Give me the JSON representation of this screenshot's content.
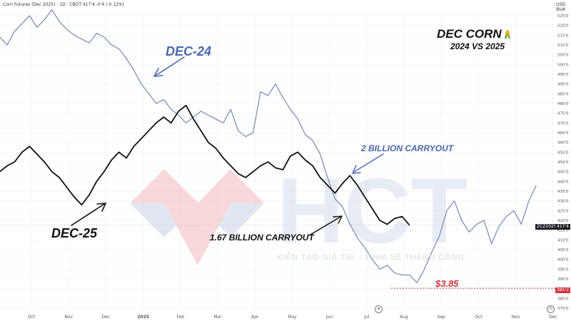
{
  "header": {
    "symbol_line": "Corn Futures (Dec 2025) · 1D · CBOT  417'4  -0'4 (-0.12%)",
    "currency": [
      "USD",
      "BUA"
    ]
  },
  "title": "DEC CORN",
  "subtitle": "2024 VS 2025",
  "watermark": {
    "logo_text": "HCT",
    "slogan": "KIẾN TẠO GIÁ TRỊ – CHIA SẺ THÀNH CÔNG"
  },
  "annotations": {
    "dec24": "DEC-24",
    "dec25": "DEC-25",
    "carry_2b": "2 BILLION CARRYOUT",
    "carry_167": "1.67 BILLION CARRYOUT",
    "price_385": "$3.85"
  },
  "tags": {
    "series_label": "ZCZ2025",
    "last_price": "417'4",
    "level_385": "385'2"
  },
  "colors": {
    "dec24": "#7c90b8",
    "dec25": "#111111",
    "annotation_blue": "#4a68ad",
    "price_red": "#d0363f",
    "grid": "#ececec"
  },
  "chart_data": {
    "type": "line",
    "title": "DEC CORN",
    "subtitle": "2024 VS 2025",
    "x_ticks": [
      "Oct",
      "Nov",
      "Dec",
      "2025",
      "Feb",
      "Mar",
      "Apr",
      "May",
      "Jun",
      "Jul",
      "Aug",
      "Sep",
      "Oct",
      "Nov",
      "Dec"
    ],
    "y_ticks": [
      "375'0",
      "380'0",
      "385'0",
      "390'0",
      "395'0",
      "400'0",
      "405'0",
      "410'0",
      "415'0",
      "420'0",
      "425'0",
      "430'0",
      "435'0",
      "440'0",
      "445'0",
      "450'0",
      "455'0",
      "460'0",
      "465'0",
      "470'0",
      "475'0",
      "480'0",
      "485'0",
      "490'0",
      "495'0",
      "500'0",
      "505'0",
      "510'0",
      "515'0",
      "520'0",
      "525'0"
    ],
    "ylim": [
      375,
      525
    ],
    "grid": true,
    "series": [
      {
        "name": "DEC-24",
        "x": [
          0.0,
          0.2,
          0.4,
          0.6,
          0.8,
          1.0,
          1.2,
          1.4,
          1.6,
          1.8,
          2.0,
          2.2,
          2.4,
          2.6,
          2.8,
          3.0,
          3.2,
          3.4,
          3.6,
          3.8,
          4.0,
          4.2,
          4.4,
          4.6,
          4.8,
          5.0,
          5.2,
          5.4,
          5.6,
          5.8,
          6.0,
          6.2,
          6.4,
          6.6,
          6.8,
          7.0,
          7.2,
          7.4,
          7.6,
          7.8,
          8.0,
          8.2,
          8.4,
          8.6,
          8.8,
          9.0,
          9.2,
          9.4,
          9.6,
          9.8,
          10.0,
          10.2,
          10.4,
          10.6,
          10.8,
          11.0,
          11.2,
          11.4,
          11.6,
          11.8,
          12.0,
          12.2,
          12.4,
          12.6,
          12.8,
          13.0,
          13.2,
          13.4,
          13.6,
          13.8,
          14.0,
          14.2,
          14.4
        ],
        "values": [
          514,
          510,
          517,
          521,
          525,
          519,
          523,
          528,
          522,
          518,
          515,
          513,
          511,
          516,
          514,
          510,
          508,
          503,
          497,
          490,
          485,
          480,
          482,
          477,
          474,
          470,
          473,
          476,
          474,
          472,
          470,
          477,
          466,
          463,
          465,
          486,
          484,
          490,
          483,
          477,
          472,
          464,
          461,
          454,
          442,
          431,
          427,
          418,
          411,
          406,
          400,
          395,
          397,
          393,
          392,
          392,
          388,
          395,
          404,
          412,
          425,
          430,
          420,
          414,
          418,
          420,
          408,
          417,
          422,
          425,
          418,
          430,
          438
        ]
      },
      {
        "name": "DEC-25",
        "x": [
          0.0,
          0.2,
          0.4,
          0.6,
          0.8,
          1.0,
          1.2,
          1.4,
          1.6,
          1.8,
          2.0,
          2.2,
          2.4,
          2.6,
          2.8,
          3.0,
          3.2,
          3.4,
          3.6,
          3.8,
          4.0,
          4.2,
          4.4,
          4.6,
          4.8,
          5.0,
          5.2,
          5.4,
          5.6,
          5.8,
          6.0,
          6.2,
          6.4,
          6.6,
          6.8,
          7.0,
          7.2,
          7.4,
          7.6,
          7.8,
          8.0,
          8.2,
          8.4,
          8.6,
          8.8,
          9.0,
          9.2,
          9.4,
          9.6,
          9.8,
          10.0,
          10.2,
          10.4,
          10.6,
          10.8,
          11.0
        ],
        "values": [
          445,
          448,
          450,
          455,
          458,
          454,
          450,
          445,
          442,
          437,
          432,
          428,
          433,
          440,
          445,
          451,
          455,
          452,
          458,
          462,
          466,
          470,
          473,
          470,
          476,
          479,
          472,
          466,
          460,
          457,
          452,
          448,
          444,
          442,
          445,
          448,
          450,
          447,
          446,
          453,
          455,
          451,
          448,
          442,
          438,
          434,
          439,
          443,
          438,
          432,
          426,
          420,
          418,
          421,
          422,
          417.5
        ]
      }
    ],
    "annotations": [
      "DEC-24",
      "DEC-25",
      "2 BILLION CARRYOUT",
      "1.67 BILLION CARRYOUT",
      "$3.85"
    ]
  }
}
